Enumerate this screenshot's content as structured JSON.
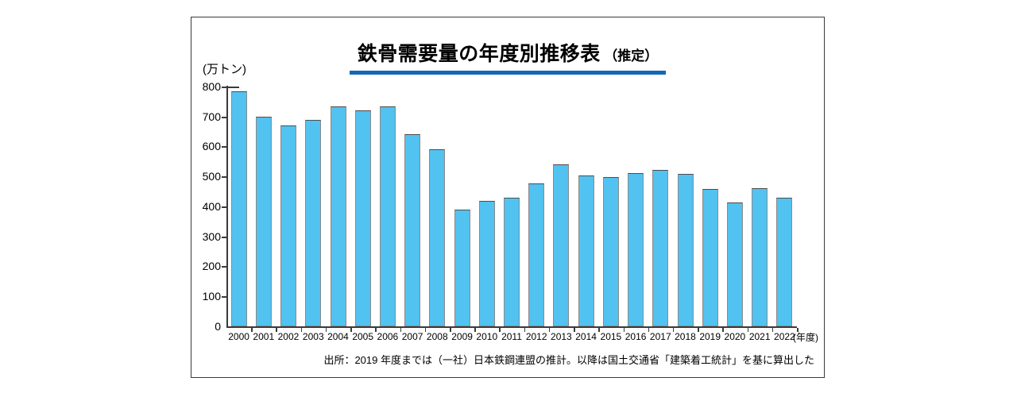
{
  "title": {
    "main": "鉄骨需要量の年度別推移表",
    "suffix": "（推定）"
  },
  "y_axis_unit": "(万トン)",
  "x_axis_suffix": "(年度)",
  "source_note": "出所：2019 年度までは（一社）日本鉄鋼連盟の推計。以降は国土交通省「建築着工統計」を基に算出した",
  "colors": {
    "bar_fill": "#52C2F0",
    "bar_border": "#8a8a8a",
    "axis": "#3a3a3a",
    "title_underline": "#1568b6"
  },
  "chart_data": {
    "type": "bar",
    "categories": [
      "2000",
      "2001",
      "2002",
      "2003",
      "2004",
      "2005",
      "2006",
      "2007",
      "2008",
      "2009",
      "2010",
      "2011",
      "2012",
      "2013",
      "2014",
      "2015",
      "2016",
      "2017",
      "2018",
      "2019",
      "2020",
      "2021",
      "2022"
    ],
    "values": [
      785,
      700,
      670,
      690,
      735,
      720,
      735,
      641,
      590,
      390,
      418,
      430,
      476,
      541,
      502,
      498,
      512,
      522,
      508,
      457,
      412,
      462,
      430
    ],
    "title": "鉄骨需要量の年度別推移表（推定）",
    "xlabel": "年度",
    "ylabel": "万トン",
    "ylim": [
      0,
      800
    ],
    "ytick_interval": 100,
    "yticks": [
      0,
      100,
      200,
      300,
      400,
      500,
      600,
      700,
      800
    ],
    "grid": false,
    "legend": "none"
  }
}
